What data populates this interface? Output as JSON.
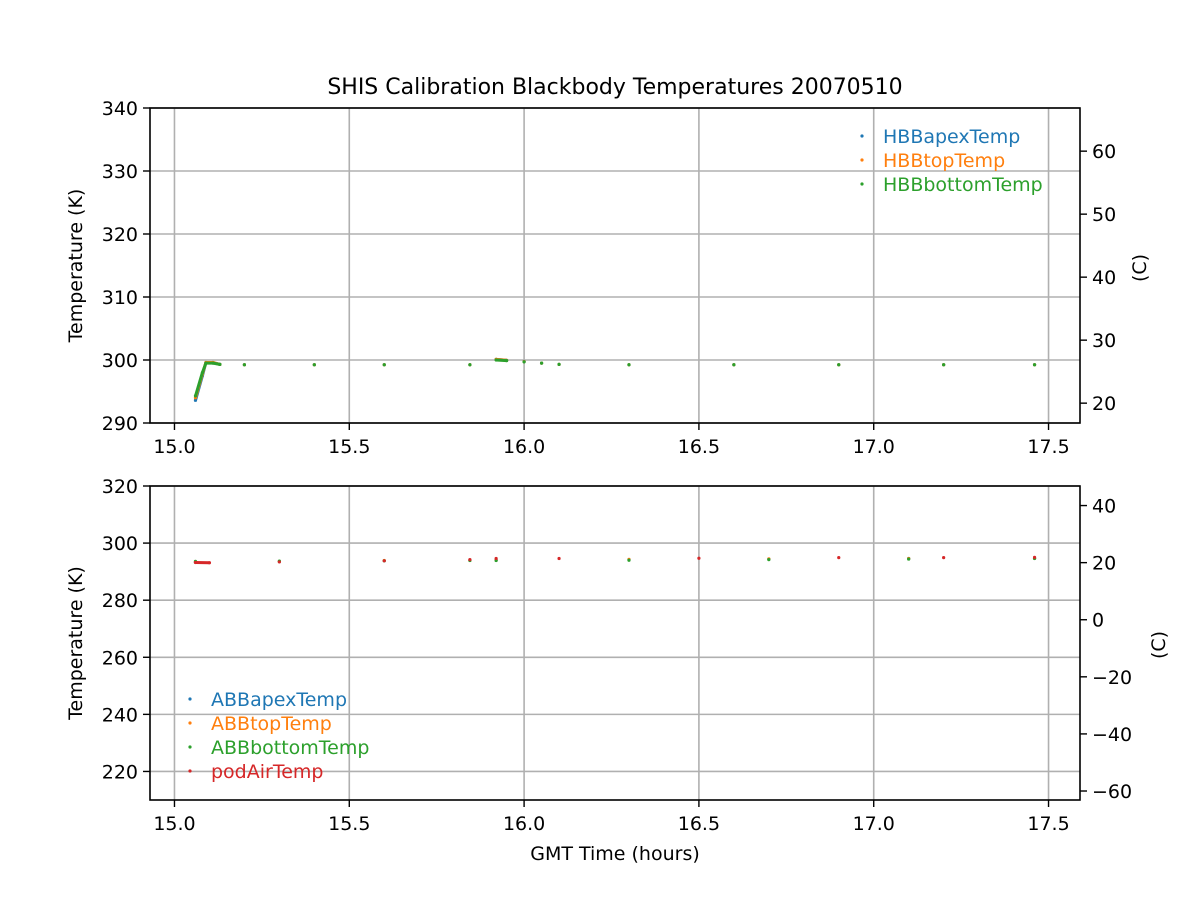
{
  "figure": {
    "title": "SHIS Calibration Blackbody Temperatures 20070510",
    "xlabel": "GMT Time (hours)"
  },
  "chart_data": [
    {
      "type": "scatter",
      "ylabel": "Temperature (K)",
      "ylabel_right": "(C)",
      "xlim": [
        14.93,
        17.59
      ],
      "ylim": [
        290,
        340
      ],
      "ylim_right": [
        16.85,
        66.85
      ],
      "x_ticks": [
        "15.0",
        "15.5",
        "16.0",
        "16.5",
        "17.0",
        "17.5"
      ],
      "y_ticks": [
        "290",
        "300",
        "310",
        "320",
        "330",
        "340"
      ],
      "y_ticks_right": [
        "20",
        "30",
        "40",
        "50",
        "60"
      ],
      "grid": true,
      "legend_position": "upper-right",
      "series": [
        {
          "name": "HBBapexTemp",
          "color": "#1f77b4",
          "x": [
            15.06,
            15.08,
            15.09,
            15.11,
            15.13,
            15.2,
            15.4,
            15.6,
            15.845,
            15.92,
            15.95,
            16.0,
            16.05,
            16.1,
            16.3,
            16.6,
            16.9,
            17.2,
            17.46
          ],
          "y": [
            293.6,
            297.5,
            299.6,
            299.6,
            299.3,
            299.25,
            299.25,
            299.25,
            299.25,
            300.1,
            299.95,
            299.75,
            299.5,
            299.3,
            299.25,
            299.25,
            299.25,
            299.25,
            299.25
          ]
        },
        {
          "name": "HBBtopTemp",
          "color": "#ff7f0e",
          "x": [
            15.06,
            15.08,
            15.09,
            15.11,
            15.13,
            15.2,
            15.4,
            15.6,
            15.845,
            15.92,
            15.95,
            16.0,
            16.05,
            16.1,
            16.3,
            16.6,
            16.9,
            17.2,
            17.46
          ],
          "y": [
            294.0,
            297.8,
            299.6,
            299.6,
            299.3,
            299.25,
            299.25,
            299.25,
            299.25,
            300.1,
            299.95,
            299.75,
            299.5,
            299.3,
            299.25,
            299.25,
            299.25,
            299.25,
            299.25
          ]
        },
        {
          "name": "HBBbottomTemp",
          "color": "#2ca02c",
          "x": [
            15.06,
            15.08,
            15.09,
            15.11,
            15.13,
            15.2,
            15.4,
            15.6,
            15.845,
            15.92,
            15.95,
            16.0,
            16.05,
            16.1,
            16.3,
            16.6,
            16.9,
            17.2,
            17.46
          ],
          "y": [
            294.3,
            298.0,
            299.5,
            299.5,
            299.3,
            299.25,
            299.25,
            299.25,
            299.25,
            300.0,
            299.9,
            299.7,
            299.5,
            299.3,
            299.25,
            299.25,
            299.25,
            299.25,
            299.25
          ]
        }
      ]
    },
    {
      "type": "scatter",
      "ylabel": "Temperature (K)",
      "ylabel_right": "(C)",
      "xlim": [
        14.93,
        17.59
      ],
      "ylim": [
        210,
        320
      ],
      "ylim_right": [
        -63.15,
        46.85
      ],
      "x_ticks": [
        "15.0",
        "15.5",
        "16.0",
        "16.5",
        "17.0",
        "17.5"
      ],
      "y_ticks": [
        "220",
        "240",
        "260",
        "280",
        "300",
        "320"
      ],
      "y_ticks_right": [
        "−60",
        "−40",
        "−20",
        "0",
        "20",
        "40"
      ],
      "grid": true,
      "legend_position": "lower-left",
      "series": [
        {
          "name": "ABBapexTemp",
          "color": "#1f77b4",
          "x": [
            15.06,
            15.3,
            15.6,
            15.845,
            15.92,
            16.3,
            16.7,
            17.1,
            17.46
          ],
          "y": [
            293.3,
            293.5,
            293.8,
            294.0,
            294.0,
            294.2,
            294.4,
            294.6,
            294.7
          ]
        },
        {
          "name": "ABBtopTemp",
          "color": "#ff7f0e",
          "x": [
            15.06,
            15.3,
            15.6,
            15.845,
            15.92,
            16.3,
            16.7,
            17.1,
            17.46
          ],
          "y": [
            293.4,
            293.6,
            293.9,
            294.0,
            294.1,
            294.3,
            294.5,
            294.6,
            294.7
          ]
        },
        {
          "name": "ABBbottomTemp",
          "color": "#2ca02c",
          "x": [
            15.06,
            15.3,
            15.6,
            15.845,
            15.92,
            16.3,
            16.7,
            17.1,
            17.46
          ],
          "y": [
            293.6,
            293.7,
            293.8,
            293.9,
            293.9,
            294.0,
            294.2,
            294.4,
            294.6
          ]
        },
        {
          "name": "podAirTemp",
          "color": "#d62728",
          "x": [
            15.06,
            15.1,
            15.3,
            15.6,
            15.845,
            15.92,
            16.1,
            16.5,
            16.9,
            17.2,
            17.46
          ],
          "y": [
            293.2,
            293.1,
            293.4,
            293.8,
            294.2,
            294.6,
            294.6,
            294.7,
            294.9,
            294.9,
            295.0
          ]
        }
      ]
    }
  ]
}
